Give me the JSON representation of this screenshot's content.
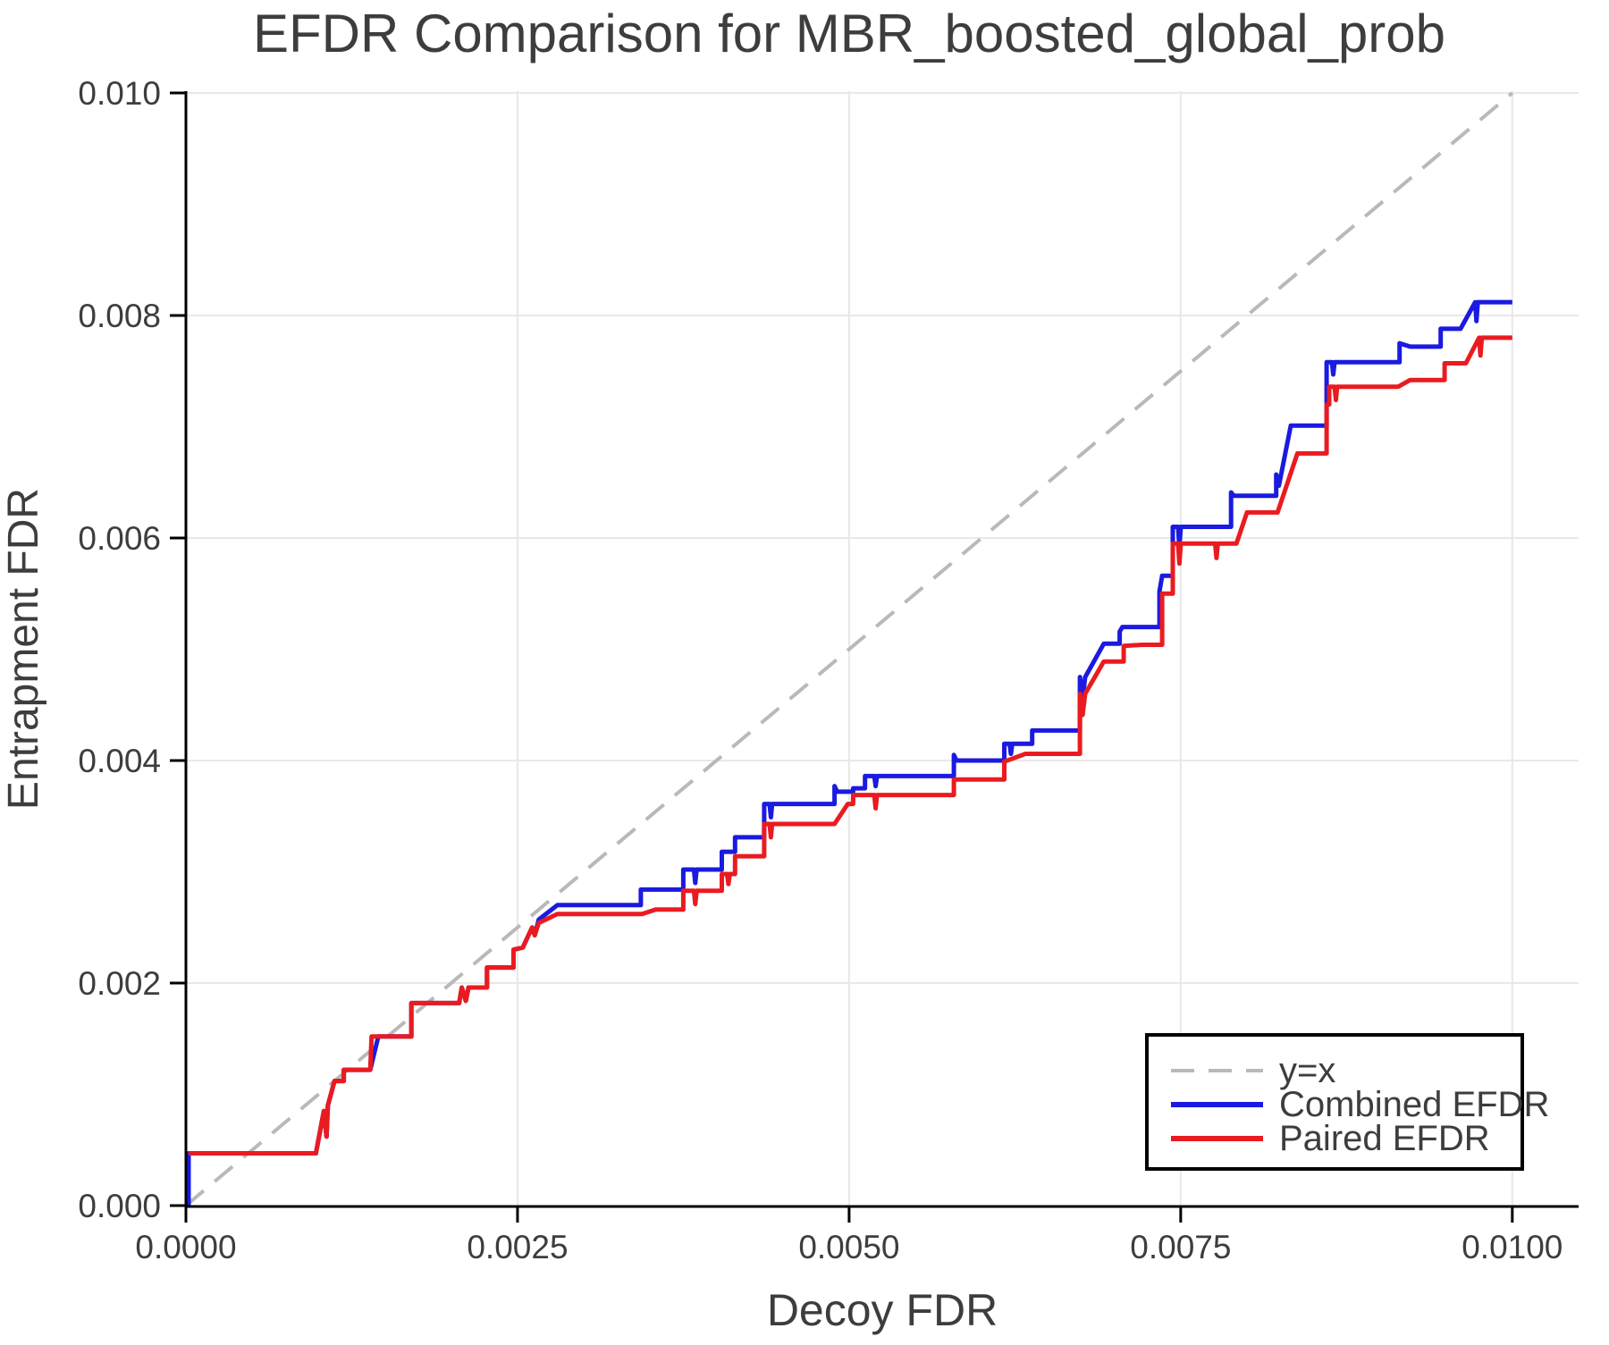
{
  "chart_data": {
    "type": "line",
    "title": "EFDR Comparison for MBR_boosted_global_prob",
    "xlabel": "Decoy FDR",
    "ylabel": "Entrapment FDR",
    "xlim": [
      0,
      0.0105
    ],
    "ylim": [
      0,
      0.01
    ],
    "grid": true,
    "legend_position": "lower right",
    "colors": {
      "identity": "#b9b9b9",
      "combined": "#1a1ae0",
      "paired": "#ea1b20",
      "grid": "#e8e8e8",
      "spine": "#000000",
      "text": "#3d3d3d"
    },
    "x_ticks": {
      "values": [
        0,
        0.0025,
        0.005,
        0.0075,
        0.01
      ],
      "labels": [
        "0.0000",
        "0.0025",
        "0.0050",
        "0.0075",
        "0.0100"
      ]
    },
    "y_ticks": {
      "values": [
        0,
        0.002,
        0.004,
        0.006,
        0.008,
        0.01
      ],
      "labels": [
        "0.000",
        "0.002",
        "0.004",
        "0.006",
        "0.008",
        "0.010"
      ]
    },
    "series": [
      {
        "id": "identity",
        "label": "y=x",
        "dashed": true,
        "points": [
          [
            0,
            0
          ],
          [
            0.01,
            0.01
          ]
        ]
      },
      {
        "id": "combined",
        "label": "Combined EFDR",
        "dashed": false,
        "points": [
          [
            2e-05,
            0
          ],
          [
            2e-05,
            0.00047
          ],
          [
            0.00098,
            0.00047
          ],
          [
            0.00104,
            0.00085
          ],
          [
            0.00106,
            0.00062
          ],
          [
            0.00107,
            0.0009
          ],
          [
            0.00112,
            0.00112
          ],
          [
            0.00119,
            0.00112
          ],
          [
            0.00119,
            0.00122
          ],
          [
            0.00139,
            0.00122
          ],
          [
            0.00145,
            0.00152
          ],
          [
            0.0017,
            0.00152
          ],
          [
            0.0017,
            0.00182
          ],
          [
            0.00206,
            0.00182
          ],
          [
            0.00208,
            0.00196
          ],
          [
            0.00211,
            0.00184
          ],
          [
            0.00213,
            0.00196
          ],
          [
            0.00227,
            0.00196
          ],
          [
            0.00227,
            0.00214
          ],
          [
            0.00247,
            0.00214
          ],
          [
            0.00247,
            0.0023
          ],
          [
            0.00254,
            0.00232
          ],
          [
            0.00261,
            0.0025
          ],
          [
            0.00263,
            0.00243
          ],
          [
            0.00266,
            0.00257
          ],
          [
            0.0028,
            0.0027
          ],
          [
            0.00343,
            0.0027
          ],
          [
            0.00343,
            0.00284
          ],
          [
            0.00375,
            0.00284
          ],
          [
            0.00375,
            0.00302
          ],
          [
            0.00383,
            0.00302
          ],
          [
            0.00384,
            0.0029
          ],
          [
            0.00385,
            0.00302
          ],
          [
            0.00404,
            0.00302
          ],
          [
            0.00404,
            0.00318
          ],
          [
            0.00414,
            0.00318
          ],
          [
            0.00414,
            0.00331
          ],
          [
            0.00436,
            0.00331
          ],
          [
            0.00436,
            0.00361
          ],
          [
            0.0044,
            0.00361
          ],
          [
            0.00441,
            0.00349
          ],
          [
            0.00442,
            0.00361
          ],
          [
            0.00489,
            0.00361
          ],
          [
            0.00489,
            0.00377
          ],
          [
            0.00491,
            0.00372
          ],
          [
            0.00503,
            0.00372
          ],
          [
            0.00503,
            0.00375
          ],
          [
            0.00512,
            0.00375
          ],
          [
            0.00512,
            0.00386
          ],
          [
            0.00519,
            0.00386
          ],
          [
            0.0052,
            0.00377
          ],
          [
            0.00521,
            0.00386
          ],
          [
            0.00579,
            0.00386
          ],
          [
            0.00579,
            0.00405
          ],
          [
            0.00581,
            0.004
          ],
          [
            0.00617,
            0.004
          ],
          [
            0.00617,
            0.00415
          ],
          [
            0.00621,
            0.00415
          ],
          [
            0.00622,
            0.00406
          ],
          [
            0.00623,
            0.00415
          ],
          [
            0.00638,
            0.00415
          ],
          [
            0.00638,
            0.00427
          ],
          [
            0.00674,
            0.00427
          ],
          [
            0.00674,
            0.00475
          ],
          [
            0.00676,
            0.00456
          ],
          [
            0.00678,
            0.00475
          ],
          [
            0.00692,
            0.00505
          ],
          [
            0.00704,
            0.00505
          ],
          [
            0.00704,
            0.00516
          ],
          [
            0.00706,
            0.0052
          ],
          [
            0.00734,
            0.0052
          ],
          [
            0.00734,
            0.00552
          ],
          [
            0.00736,
            0.00566
          ],
          [
            0.00744,
            0.00566
          ],
          [
            0.00744,
            0.0061
          ],
          [
            0.00748,
            0.0061
          ],
          [
            0.00749,
            0.00591
          ],
          [
            0.0075,
            0.0061
          ],
          [
            0.00788,
            0.0061
          ],
          [
            0.00788,
            0.00641
          ],
          [
            0.0079,
            0.00638
          ],
          [
            0.00822,
            0.00638
          ],
          [
            0.00822,
            0.00657
          ],
          [
            0.00824,
            0.00647
          ],
          [
            0.00833,
            0.00701
          ],
          [
            0.0086,
            0.00701
          ],
          [
            0.0086,
            0.00758
          ],
          [
            0.00864,
            0.00758
          ],
          [
            0.00865,
            0.00747
          ],
          [
            0.00866,
            0.00758
          ],
          [
            0.00915,
            0.00758
          ],
          [
            0.00915,
            0.00775
          ],
          [
            0.00923,
            0.00772
          ],
          [
            0.00946,
            0.00772
          ],
          [
            0.00946,
            0.00788
          ],
          [
            0.00961,
            0.00788
          ],
          [
            0.00972,
            0.00812
          ],
          [
            0.00973,
            0.00795
          ],
          [
            0.00974,
            0.00812
          ],
          [
            0.01,
            0.00812
          ]
        ]
      },
      {
        "id": "paired",
        "label": "Paired EFDR",
        "dashed": false,
        "points": [
          [
            2e-05,
            0.00047
          ],
          [
            0.00098,
            0.00047
          ],
          [
            0.00104,
            0.00085
          ],
          [
            0.00106,
            0.00062
          ],
          [
            0.00107,
            0.0009
          ],
          [
            0.00112,
            0.00112
          ],
          [
            0.00119,
            0.00112
          ],
          [
            0.00119,
            0.00122
          ],
          [
            0.00139,
            0.00122
          ],
          [
            0.0014,
            0.00152
          ],
          [
            0.0017,
            0.00152
          ],
          [
            0.0017,
            0.00182
          ],
          [
            0.00206,
            0.00182
          ],
          [
            0.00208,
            0.00196
          ],
          [
            0.00211,
            0.00184
          ],
          [
            0.00213,
            0.00196
          ],
          [
            0.00227,
            0.00196
          ],
          [
            0.00227,
            0.00214
          ],
          [
            0.00247,
            0.00214
          ],
          [
            0.00247,
            0.0023
          ],
          [
            0.00254,
            0.00232
          ],
          [
            0.00261,
            0.0025
          ],
          [
            0.00263,
            0.00243
          ],
          [
            0.00266,
            0.00254
          ],
          [
            0.0028,
            0.00262
          ],
          [
            0.00344,
            0.00262
          ],
          [
            0.00354,
            0.00266
          ],
          [
            0.00375,
            0.00266
          ],
          [
            0.00375,
            0.00283
          ],
          [
            0.00383,
            0.00283
          ],
          [
            0.00384,
            0.00271
          ],
          [
            0.00385,
            0.00283
          ],
          [
            0.00404,
            0.00283
          ],
          [
            0.00404,
            0.00298
          ],
          [
            0.00408,
            0.00298
          ],
          [
            0.00409,
            0.00289
          ],
          [
            0.0041,
            0.00298
          ],
          [
            0.00414,
            0.00298
          ],
          [
            0.00414,
            0.00314
          ],
          [
            0.00436,
            0.00314
          ],
          [
            0.00436,
            0.00343
          ],
          [
            0.0044,
            0.00343
          ],
          [
            0.00441,
            0.00331
          ],
          [
            0.00442,
            0.00343
          ],
          [
            0.00489,
            0.00343
          ],
          [
            0.00499,
            0.00361
          ],
          [
            0.00503,
            0.00361
          ],
          [
            0.00503,
            0.00369
          ],
          [
            0.00519,
            0.00369
          ],
          [
            0.0052,
            0.00357
          ],
          [
            0.00521,
            0.00369
          ],
          [
            0.00579,
            0.00369
          ],
          [
            0.00579,
            0.00383
          ],
          [
            0.00617,
            0.00383
          ],
          [
            0.00617,
            0.00399
          ],
          [
            0.00633,
            0.00406
          ],
          [
            0.00674,
            0.00406
          ],
          [
            0.00674,
            0.0046
          ],
          [
            0.00676,
            0.00441
          ],
          [
            0.00678,
            0.0046
          ],
          [
            0.00692,
            0.00489
          ],
          [
            0.00707,
            0.00489
          ],
          [
            0.00707,
            0.00503
          ],
          [
            0.00721,
            0.00504
          ],
          [
            0.00736,
            0.00504
          ],
          [
            0.00736,
            0.0055
          ],
          [
            0.00744,
            0.0055
          ],
          [
            0.00744,
            0.00595
          ],
          [
            0.00748,
            0.00595
          ],
          [
            0.00749,
            0.00577
          ],
          [
            0.0075,
            0.00595
          ],
          [
            0.00776,
            0.00595
          ],
          [
            0.00777,
            0.00582
          ],
          [
            0.00778,
            0.00595
          ],
          [
            0.00792,
            0.00595
          ],
          [
            0.008,
            0.00623
          ],
          [
            0.00823,
            0.00623
          ],
          [
            0.00838,
            0.00676
          ],
          [
            0.0086,
            0.00676
          ],
          [
            0.0086,
            0.0072
          ],
          [
            0.00862,
            0.0072
          ],
          [
            0.00862,
            0.00736
          ],
          [
            0.00866,
            0.00736
          ],
          [
            0.00867,
            0.00724
          ],
          [
            0.00868,
            0.00736
          ],
          [
            0.00914,
            0.00736
          ],
          [
            0.00923,
            0.00742
          ],
          [
            0.00949,
            0.00742
          ],
          [
            0.00949,
            0.00757
          ],
          [
            0.00965,
            0.00757
          ],
          [
            0.00975,
            0.0078
          ],
          [
            0.00976,
            0.00764
          ],
          [
            0.00977,
            0.0078
          ],
          [
            0.01,
            0.0078
          ]
        ]
      }
    ],
    "legend": {
      "entries": [
        {
          "series": "identity",
          "label": "y=x"
        },
        {
          "series": "combined",
          "label": "Combined EFDR"
        },
        {
          "series": "paired",
          "label": "Paired EFDR"
        }
      ]
    }
  }
}
